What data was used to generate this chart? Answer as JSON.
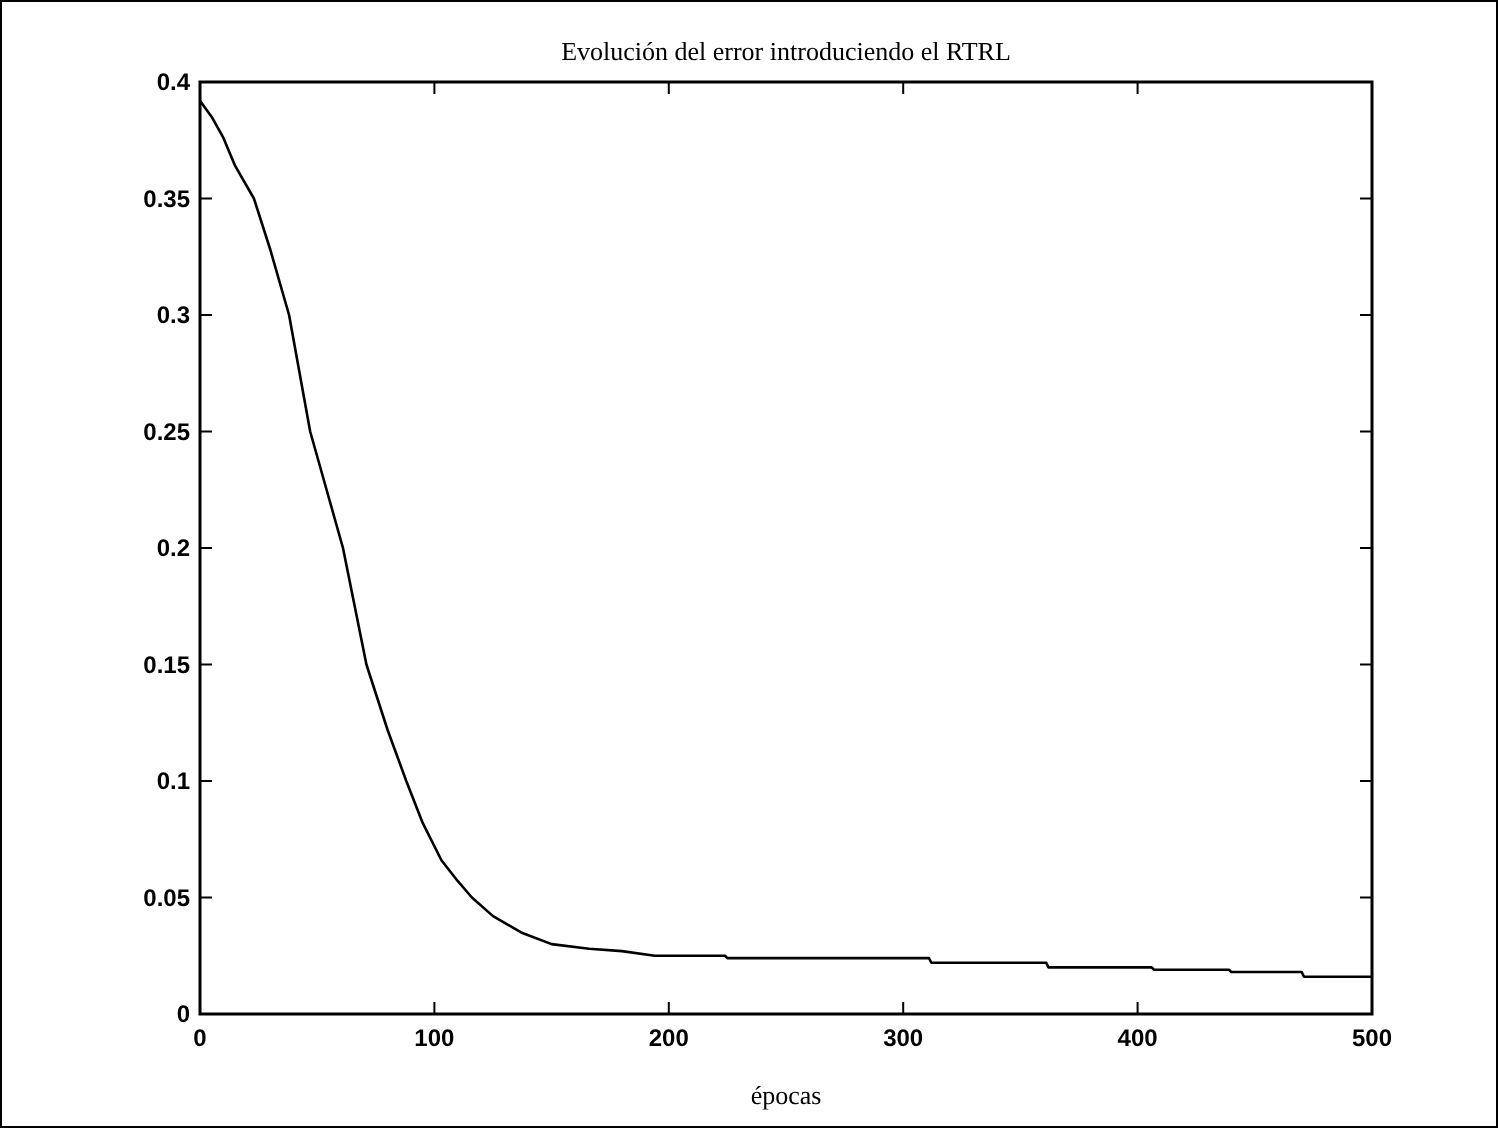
{
  "chart_data": {
    "type": "line",
    "title": "Evolución del error introduciendo el RTRL",
    "xlabel": "épocas",
    "x": [
      0,
      5,
      10,
      15,
      23,
      30,
      38,
      47,
      54,
      61,
      66,
      71,
      80,
      88,
      95,
      103,
      110,
      116,
      125,
      137,
      150,
      166,
      180,
      194,
      224,
      225,
      311,
      312,
      361,
      362,
      406,
      407,
      439,
      440,
      470,
      471,
      500
    ],
    "series": [
      {
        "color": "#000000",
        "values": [
          0.392,
          0.385,
          0.376,
          0.364,
          0.35,
          0.328,
          0.3,
          0.25,
          0.225,
          0.2,
          0.175,
          0.15,
          0.122,
          0.1,
          0.082,
          0.066,
          0.057,
          0.05,
          0.042,
          0.035,
          0.03,
          0.028,
          0.027,
          0.025,
          0.025,
          0.024,
          0.024,
          0.022,
          0.022,
          0.02,
          0.02,
          0.019,
          0.019,
          0.018,
          0.018,
          0.016,
          0.016
        ]
      }
    ],
    "xlim": [
      0,
      500
    ],
    "xticks": [
      0,
      100,
      200,
      300,
      400,
      500
    ],
    "ylim": [
      0,
      0.4
    ],
    "yticks": [
      0,
      0.05,
      0.1,
      0.15,
      0.2,
      0.25,
      0.3,
      0.35,
      0.4
    ]
  }
}
